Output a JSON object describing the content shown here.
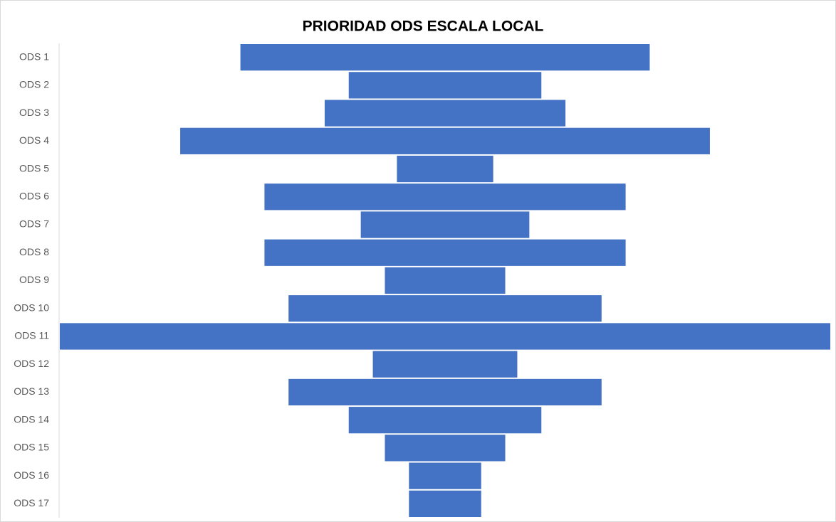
{
  "chart_data": {
    "type": "funnel",
    "title": "PRIORIDAD ODS ESCALA LOCAL",
    "categories": [
      "ODS 1",
      "ODS 2",
      "ODS 3",
      "ODS 4",
      "ODS 5",
      "ODS 6",
      "ODS 7",
      "ODS 8",
      "ODS 9",
      "ODS 10",
      "ODS 11",
      "ODS 12",
      "ODS 13",
      "ODS 14",
      "ODS 15",
      "ODS 16",
      "ODS 17"
    ],
    "values": [
      17,
      8,
      10,
      22,
      4,
      15,
      7,
      15,
      5,
      13,
      32,
      6,
      13,
      8,
      5,
      3,
      3
    ],
    "color": "#4472c4"
  }
}
